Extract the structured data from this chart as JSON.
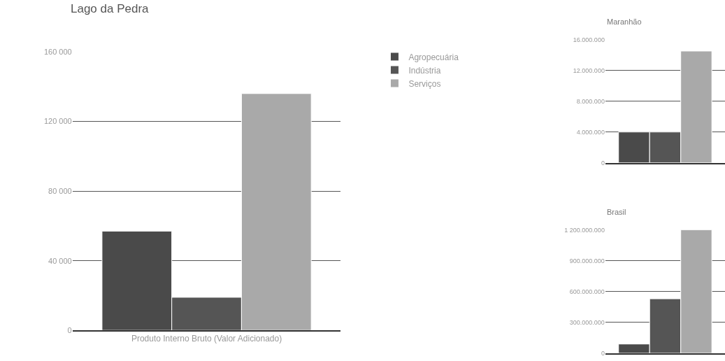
{
  "chart_data": [
    {
      "type": "bar",
      "title": "Lago da Pedra",
      "categories": [
        "Produto Interno Bruto (Valor Adicionado)"
      ],
      "series": [
        {
          "name": "Agropecuária",
          "color": "#4a4a4a",
          "values": [
            57000
          ]
        },
        {
          "name": "Indústria",
          "color": "#555555",
          "values": [
            19000
          ]
        },
        {
          "name": "Serviços",
          "color": "#a9a9a9",
          "values": [
            136000
          ]
        }
      ],
      "ylim": [
        0,
        160000
      ],
      "yticks": [
        0,
        {
          "value": 40000,
          "label": "40 000"
        },
        {
          "value": 80000,
          "label": "80 000"
        },
        {
          "value": 120000,
          "label": "120 000"
        },
        {
          "value": 160000,
          "label": "160 000"
        }
      ],
      "grid": "y",
      "legend": "right"
    },
    {
      "type": "bar",
      "title": "Maranhão",
      "categories": [
        null
      ],
      "series": [
        {
          "color": "#4a4a4a",
          "values": [
            4000000
          ]
        },
        {
          "color": "#555555",
          "values": [
            4000000
          ]
        },
        {
          "color": "#a9a9a9",
          "values": [
            14500000
          ]
        }
      ],
      "ylim": [
        0,
        16000000
      ],
      "yticks": [
        0,
        {
          "value": 4000000,
          "label": "4.000.000"
        },
        {
          "value": 8000000,
          "label": "8.000.000"
        },
        {
          "value": 12000000,
          "label": "12.000.000"
        },
        {
          "value": 16000000,
          "label": "16.000.000"
        }
      ],
      "grid": "y"
    },
    {
      "type": "bar",
      "title": "Brasil",
      "categories": [
        null
      ],
      "series": [
        {
          "color": "#4a4a4a",
          "values": [
            90000000
          ]
        },
        {
          "color": "#555555",
          "values": [
            530000000
          ]
        },
        {
          "color": "#a9a9a9",
          "values": [
            1200000000
          ]
        }
      ],
      "ylim": [
        0,
        1200000000
      ],
      "yticks": [
        0,
        {
          "value": 300000000,
          "label": "300.000.000"
        },
        {
          "value": 600000000,
          "label": "600.000.000"
        },
        {
          "value": 900000000,
          "label": "900.000.000"
        },
        {
          "value": 1200000000,
          "label": "1 200.000.000"
        }
      ],
      "grid": "y"
    }
  ]
}
